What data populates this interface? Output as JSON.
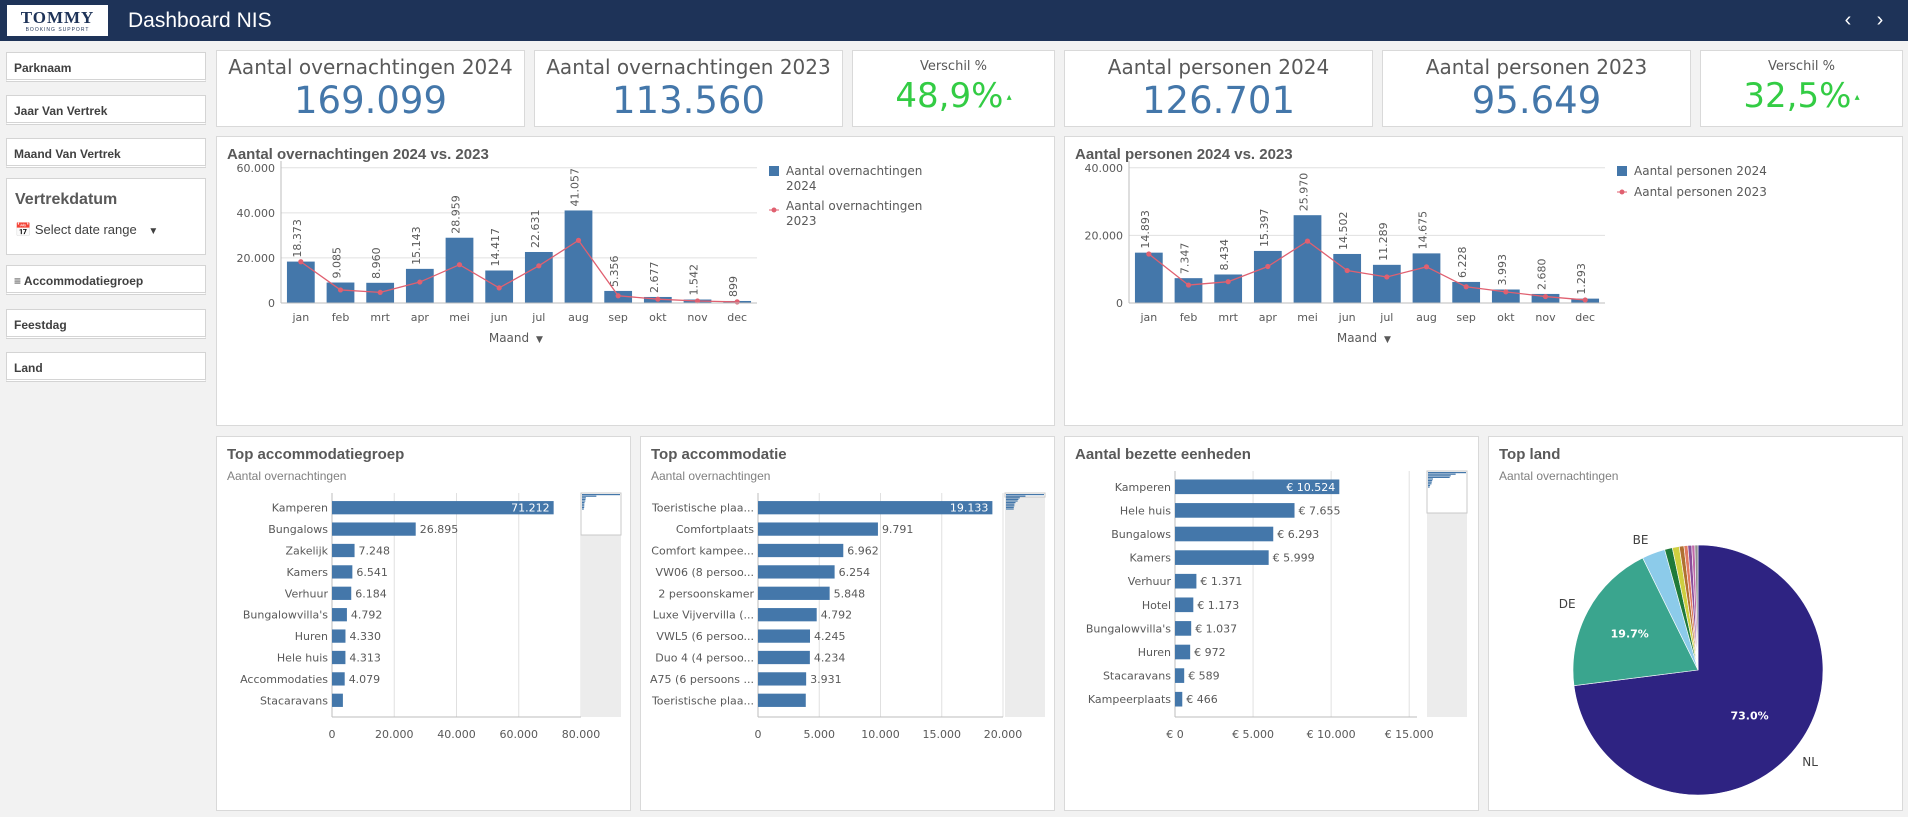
{
  "header": {
    "logo_text": "TOMMY",
    "logo_sub": "BOOKING SUPPORT",
    "title": "Dashboard NIS",
    "prev_icon": "chevron-left-icon",
    "next_icon": "chevron-right-icon"
  },
  "filters": {
    "parknaam": "Parknaam",
    "jaar": "Jaar Van Vertrek",
    "maand": "Maand Van Vertrek",
    "vertrekdatum": "Vertrekdatum",
    "date_range": "Select date range",
    "accommodatiegroep": "Accommodatiegroep",
    "feestdag": "Feestdag",
    "land": "Land"
  },
  "kpis": {
    "overnachtingen_2024": {
      "label": "Aantal overnachtingen 2024",
      "value": "169.099"
    },
    "overnachtingen_2023": {
      "label": "Aantal overnachtingen 2023",
      "value": "113.560"
    },
    "verschil_1": {
      "label": "Verschil %",
      "value": "48,9%"
    },
    "personen_2024": {
      "label": "Aantal personen 2024",
      "value": "126.701"
    },
    "personen_2023": {
      "label": "Aantal personen 2023",
      "value": "95.649"
    },
    "verschil_2": {
      "label": "Verschil %",
      "value": "32,5%"
    }
  },
  "colors": {
    "bar": "#4477aa",
    "line": "#e06070",
    "kpi_blue": "#4477aa",
    "kpi_green": "#33cc44",
    "header": "#1e3358"
  },
  "chart_data": [
    {
      "type": "bar",
      "title": "Aantal overnachtingen 2024 vs. 2023",
      "xlabel": "Maand",
      "categories": [
        "jan",
        "feb",
        "mrt",
        "apr",
        "mei",
        "jun",
        "jul",
        "aug",
        "sep",
        "okt",
        "nov",
        "dec"
      ],
      "series": [
        {
          "name": "Aantal overnachtingen 2024",
          "kind": "bar",
          "values": [
            18373,
            9085,
            8960,
            15143,
            28959,
            14417,
            22631,
            41057,
            5356,
            2677,
            1542,
            899
          ]
        },
        {
          "name": "Aantal overnachtingen 2023",
          "kind": "line",
          "values": [
            18300,
            5800,
            4700,
            9300,
            17000,
            6700,
            16500,
            27800,
            3200,
            1700,
            900,
            500
          ]
        }
      ],
      "data_labels": [
        "18.373",
        "9.085",
        "8.960",
        "15.143",
        "28.959",
        "14.417",
        "22.631",
        "41.057",
        "5.356",
        "2.677",
        "1.542",
        "899"
      ],
      "yticks": [
        "0",
        "20.000",
        "40.000",
        "60.000"
      ],
      "ylim": [
        0,
        63000
      ]
    },
    {
      "type": "bar",
      "title": "Aantal personen 2024 vs. 2023",
      "xlabel": "Maand",
      "categories": [
        "jan",
        "feb",
        "mrt",
        "apr",
        "mei",
        "jun",
        "jul",
        "aug",
        "sep",
        "okt",
        "nov",
        "dec"
      ],
      "series": [
        {
          "name": "Aantal personen 2024",
          "kind": "bar",
          "values": [
            14893,
            7347,
            8434,
            15397,
            25970,
            14502,
            11289,
            14675,
            6228,
            3993,
            2680,
            1293
          ]
        },
        {
          "name": "Aantal personen 2023",
          "kind": "line",
          "values": [
            14500,
            5300,
            6300,
            10800,
            18300,
            9600,
            7700,
            10700,
            4800,
            3300,
            1900,
            900
          ]
        }
      ],
      "data_labels": [
        "14.893",
        "7.347",
        "8.434",
        "15.397",
        "25.970",
        "14.502",
        "11.289",
        "14.675",
        "6.228",
        "3.993",
        "2.680",
        "1.293"
      ],
      "yticks": [
        "0",
        "20.000",
        "40.000"
      ],
      "ylim": [
        0,
        42000
      ]
    },
    {
      "type": "bar",
      "orientation": "horizontal",
      "title": "Top accommodatiegroep",
      "subtitle": "Aantal overnachtingen",
      "categories": [
        "Kamperen",
        "Bungalows",
        "Zakelijk",
        "Kamers",
        "Verhuur",
        "Bungalowvilla's",
        "Huren",
        "Hele huis",
        "Accommodaties",
        "Stacaravans"
      ],
      "values": [
        71212,
        26895,
        7248,
        6541,
        6184,
        4792,
        4330,
        4313,
        4079,
        3500
      ],
      "data_labels": [
        "71.212",
        "26.895",
        "7.248",
        "6.541",
        "6.184",
        "4.792",
        "4.330",
        "4.313",
        "4.079",
        ""
      ],
      "xticks": [
        "0",
        "20.000",
        "40.000",
        "60.000",
        "80.000"
      ],
      "xlim": [
        0,
        80000
      ]
    },
    {
      "type": "bar",
      "orientation": "horizontal",
      "title": "Top accommodatie",
      "subtitle": "Aantal overnachtingen",
      "categories": [
        "Toeristische plaa...",
        "Comfortplaats",
        "Comfort kampee...",
        "VW06 (8 persoo...",
        "2 persoonskamer",
        "Luxe Vijvervilla (...",
        "VWL5 (6 persoo...",
        "Duo 4 (4 persoo...",
        "A75 (6 persoons ...",
        "Toeristische plaa..."
      ],
      "values": [
        19133,
        9791,
        6962,
        6254,
        5848,
        4792,
        4245,
        4234,
        3931,
        3900
      ],
      "data_labels": [
        "19.133",
        "9.791",
        "6.962",
        "6.254",
        "5.848",
        "4.792",
        "4.245",
        "4.234",
        "3.931",
        ""
      ],
      "xticks": [
        "0",
        "5.000",
        "10.000",
        "15.000",
        "20.000"
      ],
      "xlim": [
        0,
        20000
      ]
    },
    {
      "type": "bar",
      "orientation": "horizontal",
      "title": "Aantal bezette eenheden",
      "categories": [
        "Kamperen",
        "Hele huis",
        "Bungalows",
        "Kamers",
        "Verhuur",
        "Hotel",
        "Bungalowvilla's",
        "Huren",
        "Stacaravans",
        "Kampeerplaats"
      ],
      "values": [
        10524,
        7655,
        6293,
        5999,
        1371,
        1173,
        1037,
        972,
        589,
        466
      ],
      "data_labels": [
        "€ 10.524",
        "€ 7.655",
        "€ 6.293",
        "€ 5.999",
        "€ 1.371",
        "€ 1.173",
        "€ 1.037",
        "€ 972",
        "€ 589",
        "€ 466"
      ],
      "xticks": [
        "€ 0",
        "€ 5.000",
        "€ 10.000",
        "€ 15.000"
      ],
      "xlim": [
        0,
        15500
      ]
    },
    {
      "type": "pie",
      "title": "Top land",
      "subtitle": "Aantal overnachtingen",
      "slices": [
        {
          "label": "NL",
          "value": 73.0,
          "pct_label": "73.0%",
          "color": "#2e2382"
        },
        {
          "label": "DE",
          "value": 19.7,
          "pct_label": "19.7%",
          "color": "#3aa58e"
        },
        {
          "label": "BE",
          "value": 3.0,
          "pct_label": "",
          "color": "#8ccbea"
        },
        {
          "label": "",
          "value": 1.0,
          "pct_label": "",
          "color": "#1f7a3a"
        },
        {
          "label": "",
          "value": 0.9,
          "pct_label": "",
          "color": "#cfcf40"
        },
        {
          "label": "",
          "value": 0.6,
          "pct_label": "",
          "color": "#b07030"
        },
        {
          "label": "",
          "value": 0.5,
          "pct_label": "",
          "color": "#e07a60"
        },
        {
          "label": "",
          "value": 0.5,
          "pct_label": "",
          "color": "#8a4f9a"
        },
        {
          "label": "",
          "value": 0.4,
          "pct_label": "",
          "color": "#c06aa8"
        },
        {
          "label": "",
          "value": 0.4,
          "pct_label": "",
          "color": "#909090"
        }
      ]
    }
  ]
}
